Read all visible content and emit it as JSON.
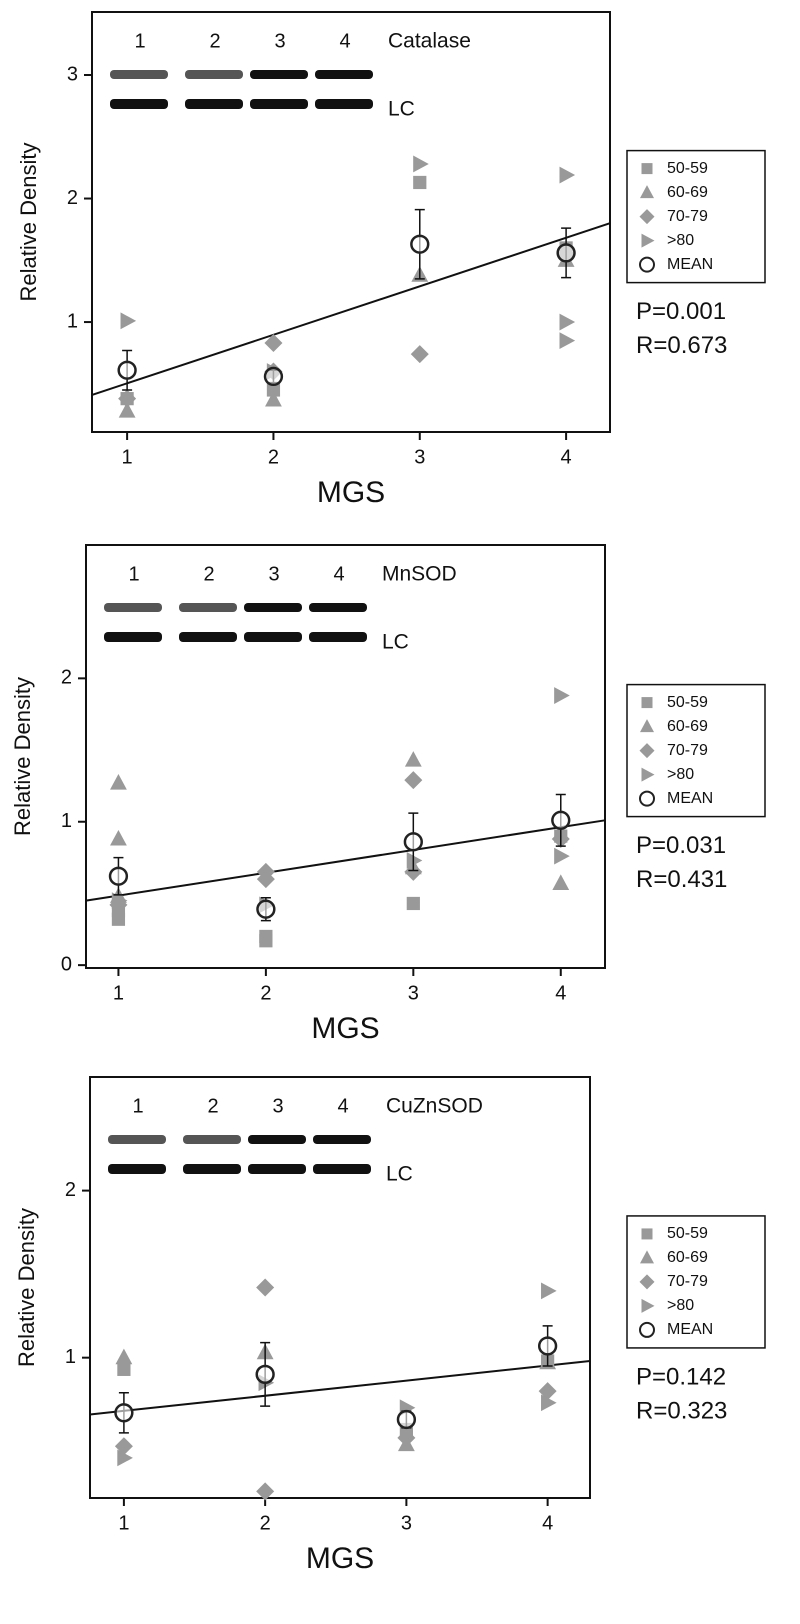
{
  "chart_data": [
    {
      "type": "scatter",
      "xlabel": "MGS",
      "ylabel": "Relative Density",
      "xlim": [
        0.76,
        4.3
      ],
      "ylim": [
        0.11,
        3.51
      ],
      "xticks": [
        1,
        2,
        3,
        4
      ],
      "yticks": [
        1,
        2,
        3
      ],
      "blot": {
        "lanes": [
          "1",
          "2",
          "3",
          "4"
        ],
        "protein": "Catalase",
        "loading_control": "LC"
      },
      "series": [
        {
          "name": "50-59",
          "marker": "square",
          "color": "#999999",
          "x": [
            1,
            2,
            3,
            4
          ],
          "y": [
            0.38,
            0.45,
            2.13,
            1.6
          ]
        },
        {
          "name": "60-69",
          "marker": "triangle-up",
          "color": "#999999",
          "x": [
            1,
            2,
            3,
            4
          ],
          "y": [
            0.28,
            0.37,
            1.38,
            1.5
          ]
        },
        {
          "name": "70-79",
          "marker": "diamond",
          "color": "#999999",
          "x": [
            1,
            2,
            2,
            3,
            4
          ],
          "y": [
            0.38,
            0.83,
            0.6,
            0.74,
            1.55
          ]
        },
        {
          "name": ">80",
          "marker": "triangle-right",
          "color": "#999999",
          "x": [
            1,
            2,
            3,
            4,
            4,
            4
          ],
          "y": [
            1.01,
            0.6,
            2.28,
            2.19,
            1.0,
            0.85
          ]
        },
        {
          "name": "MEAN",
          "marker": "circle",
          "color": "#222222",
          "x": [
            1,
            2,
            3,
            4
          ],
          "y": [
            0.61,
            0.56,
            1.63,
            1.56
          ],
          "error": [
            0.16,
            0.05,
            0.28,
            0.2
          ]
        }
      ],
      "fit": {
        "x": [
          0.76,
          4.3
        ],
        "y": [
          0.41,
          1.8
        ]
      },
      "annotations": [
        "P=0.001",
        "R=0.673"
      ]
    },
    {
      "type": "scatter",
      "xlabel": "MGS",
      "ylabel": "Relative Density",
      "xlim": [
        0.78,
        4.3
      ],
      "ylim": [
        -0.02,
        2.93
      ],
      "xticks": [
        1,
        2,
        3,
        4
      ],
      "yticks": [
        0,
        1,
        2
      ],
      "blot": {
        "lanes": [
          "1",
          "2",
          "3",
          "4"
        ],
        "protein": "MnSOD",
        "loading_control": "LC"
      },
      "series": [
        {
          "name": "50-59",
          "marker": "square",
          "color": "#999999",
          "x": [
            1,
            1,
            2,
            2,
            3,
            4
          ],
          "y": [
            0.32,
            0.38,
            0.17,
            0.2,
            0.43,
            0.9
          ]
        },
        {
          "name": "60-69",
          "marker": "triangle-up",
          "color": "#999999",
          "x": [
            1,
            1,
            1,
            3,
            3,
            4
          ],
          "y": [
            1.27,
            0.88,
            0.48,
            1.43,
            0.68,
            0.57
          ]
        },
        {
          "name": "70-79",
          "marker": "diamond",
          "color": "#999999",
          "x": [
            1,
            2,
            2,
            3,
            3,
            4
          ],
          "y": [
            0.42,
            0.65,
            0.6,
            1.29,
            0.65,
            0.88
          ]
        },
        {
          "name": ">80",
          "marker": "triangle-right",
          "color": "#999999",
          "x": [
            1,
            2,
            3,
            4,
            4
          ],
          "y": [
            0.45,
            0.42,
            0.73,
            1.88,
            0.76
          ]
        },
        {
          "name": "MEAN",
          "marker": "circle",
          "color": "#222222",
          "x": [
            1,
            2,
            3,
            4
          ],
          "y": [
            0.62,
            0.39,
            0.86,
            1.01
          ],
          "error": [
            0.13,
            0.08,
            0.2,
            0.18
          ]
        }
      ],
      "fit": {
        "x": [
          0.78,
          4.3
        ],
        "y": [
          0.45,
          1.01
        ]
      },
      "annotations": [
        "P=0.031",
        "R=0.431"
      ]
    },
    {
      "type": "scatter",
      "xlabel": "MGS",
      "ylabel": "Relative Density",
      "xlim": [
        0.76,
        4.3
      ],
      "ylim": [
        0.16,
        2.68
      ],
      "xticks": [
        1,
        2,
        3,
        4
      ],
      "yticks": [
        1,
        2
      ],
      "blot": {
        "lanes": [
          "1",
          "2",
          "3",
          "4"
        ],
        "protein": "CuZnSOD",
        "loading_control": "LC"
      },
      "series": [
        {
          "name": "50-59",
          "marker": "square",
          "color": "#999999",
          "x": [
            1,
            3,
            4
          ],
          "y": [
            0.93,
            0.57,
            0.98
          ]
        },
        {
          "name": "60-69",
          "marker": "triangle-up",
          "color": "#999999",
          "x": [
            1,
            2,
            3,
            4
          ],
          "y": [
            1.0,
            1.03,
            0.48,
            0.97
          ]
        },
        {
          "name": "70-79",
          "marker": "diamond",
          "color": "#999999",
          "x": [
            1,
            2,
            2,
            3,
            4
          ],
          "y": [
            0.47,
            1.42,
            0.2,
            0.52,
            0.8
          ]
        },
        {
          "name": ">80",
          "marker": "triangle-right",
          "color": "#999999",
          "x": [
            1,
            2,
            3,
            4,
            4
          ],
          "y": [
            0.4,
            0.85,
            0.7,
            1.4,
            0.73
          ]
        },
        {
          "name": "MEAN",
          "marker": "circle",
          "color": "#222222",
          "x": [
            1,
            2,
            3,
            4
          ],
          "y": [
            0.67,
            0.9,
            0.63,
            1.07
          ],
          "error": [
            0.12,
            0.19,
            0.05,
            0.12
          ]
        }
      ],
      "fit": {
        "x": [
          0.76,
          4.3
        ],
        "y": [
          0.66,
          0.98
        ]
      },
      "annotations": [
        "P=0.142",
        "R=0.323"
      ]
    }
  ]
}
